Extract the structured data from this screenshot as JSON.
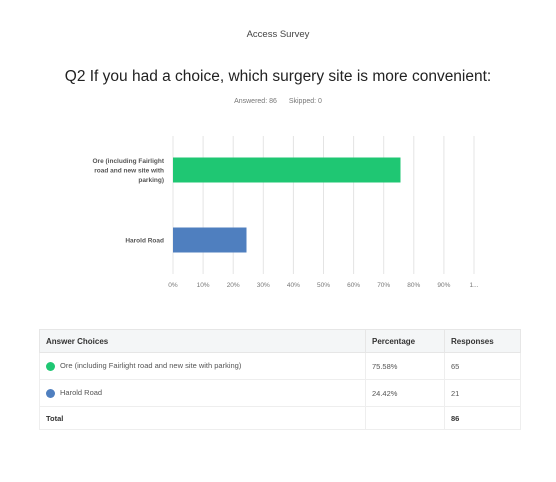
{
  "survey_title": "Access Survey",
  "question": "Q2 If you had a choice, which surgery site is more convenient:",
  "answered_label": "Answered: 86",
  "skipped_label": "Skipped: 0",
  "chart_data": {
    "type": "bar",
    "orientation": "horizontal",
    "categories": [
      "Ore (including Fairlight road and new site with parking)",
      "Harold Road"
    ],
    "category_lines": [
      [
        "Ore (including Fairlight",
        "road and new site with",
        "parking)"
      ],
      [
        "Harold Road"
      ]
    ],
    "values": [
      75.58,
      24.42
    ],
    "colors": [
      "#1fc773",
      "#4f7fbf"
    ],
    "xlim": [
      0,
      100
    ],
    "xticks": [
      "0%",
      "10%",
      "20%",
      "30%",
      "40%",
      "50%",
      "60%",
      "70%",
      "80%",
      "90%",
      "1..."
    ],
    "grid": true
  },
  "table": {
    "headers": [
      "Answer Choices",
      "Percentage",
      "Responses"
    ],
    "rows": [
      {
        "choice": "Ore (including Fairlight road and new site with parking)",
        "percentage": "75.58%",
        "responses": "65",
        "color": "#1fc773"
      },
      {
        "choice": "Harold Road",
        "percentage": "24.42%",
        "responses": "21",
        "color": "#4f7fbf"
      }
    ],
    "total_label": "Total",
    "total_value": "86"
  }
}
